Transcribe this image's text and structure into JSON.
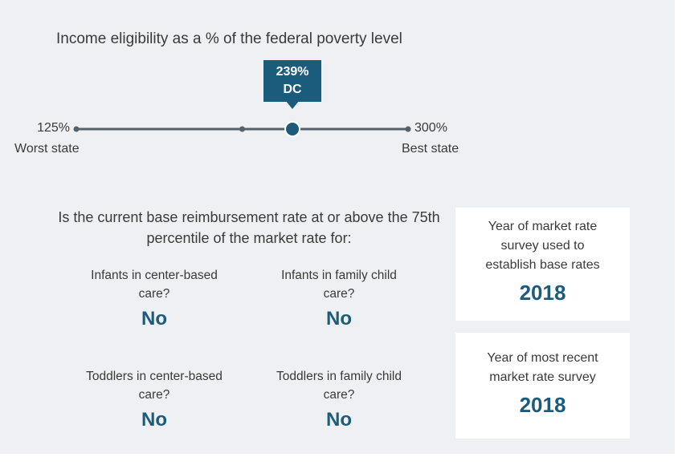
{
  "eligibility": {
    "title": "Income eligibility as a % of the federal poverty level",
    "min": {
      "value": 125,
      "label": "125%",
      "caption": "Worst state"
    },
    "max": {
      "value": 300,
      "label": "300%",
      "caption": "Best state"
    },
    "current": {
      "value": 239,
      "label": "239%",
      "state": "DC"
    }
  },
  "reimbursement": {
    "question": "Is the current base reimbursement rate at or above the 75th percentile of the market rate for:",
    "items": [
      {
        "label": "Infants in center-based care?",
        "answer": "No"
      },
      {
        "label": "Infants in family child care?",
        "answer": "No"
      },
      {
        "label": "Toddlers in center-based care?",
        "answer": "No"
      },
      {
        "label": "Toddlers in family child care?",
        "answer": "No"
      }
    ]
  },
  "surveys": [
    {
      "label": "Year of market rate survey used to establish base rates",
      "value": "2018"
    },
    {
      "label": "Year of most recent market rate survey",
      "value": "2018"
    }
  ]
}
